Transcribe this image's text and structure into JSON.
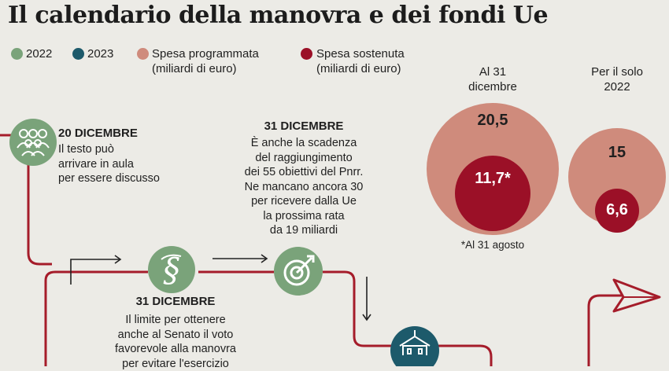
{
  "title": "Il calendario della manovra e dei fondi Ue",
  "legend": {
    "y2022": "2022",
    "y2023": "2023",
    "programmata_l1": "Spesa programmata",
    "programmata_l2": "(miliardi di euro)",
    "sostenuta_l1": "Spesa sostenuta",
    "sostenuta_l2": "(miliardi di euro)"
  },
  "colors": {
    "green": "#7aa37a",
    "teal": "#1d5a6b",
    "salmon": "#cf8b7c",
    "darkred": "#9b1027",
    "line": "#a51c2a"
  },
  "events": {
    "e1": {
      "date": "20 DICEMBRE",
      "lines": [
        "Il testo può",
        "arrivare in aula",
        "per essere discusso"
      ],
      "icon": "people-icon"
    },
    "e2": {
      "date": "31 DICEMBRE",
      "lines": [
        "È anche la scadenza",
        "del raggiungimento",
        "dei 55 obiettivi del Pnrr.",
        "Ne mancano ancora 30",
        "per ricevere dalla Ue",
        "la prossima rata",
        "da 19 miliardi"
      ],
      "icon": "target-icon"
    },
    "e3": {
      "date": "31 DICEMBRE",
      "lines": [
        "Il limite per ottenere",
        "anche al Senato il voto",
        "favorevole alla manovra",
        "per evitare l'esercizio"
      ],
      "icon": "scroll-icon"
    },
    "e4": {
      "icon": "building-icon"
    }
  },
  "bubbles": {
    "b1": {
      "header_l1": "Al 31",
      "header_l2": "dicembre",
      "programmata": "20,5",
      "sostenuta": "11,7*",
      "note": "*Al 31 agosto"
    },
    "b2": {
      "header_l1": "Per il solo",
      "header_l2": "2022",
      "programmata": "15",
      "sostenuta": "6,6"
    }
  }
}
